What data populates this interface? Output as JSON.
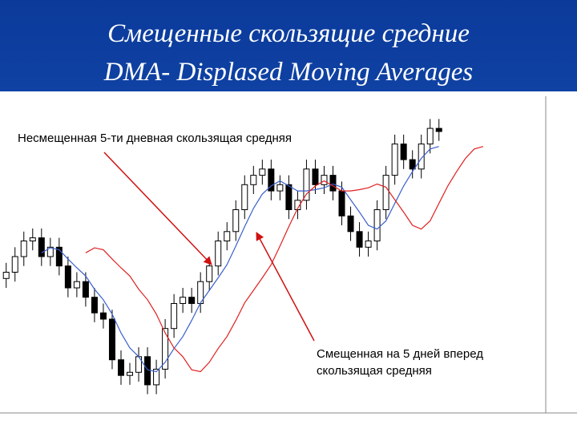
{
  "chart_data": {
    "type": "candlestick",
    "title": "Смещенные скользящие средние",
    "subtitle": "DMA- Displased Moving Averages",
    "annotations": [
      "Несмещенная 5-ти дневная скользящая средняя",
      "Смещенная на 5 дней вперед",
      "скользящая средняя"
    ],
    "open": [
      43,
      45,
      50,
      55,
      56,
      50,
      53,
      47,
      40,
      42,
      37,
      32,
      30,
      17,
      12,
      13,
      18,
      9,
      14,
      27,
      35,
      37,
      35,
      42,
      47,
      55,
      58,
      65,
      73,
      76,
      78,
      71,
      73,
      65,
      68,
      78,
      73,
      76,
      71,
      63,
      58,
      53,
      55,
      65,
      76,
      86,
      81,
      78,
      86,
      91
    ],
    "high": [
      48,
      53,
      58,
      59,
      59,
      56,
      56,
      50,
      45,
      45,
      40,
      35,
      33,
      20,
      16,
      21,
      21,
      17,
      30,
      38,
      40,
      40,
      45,
      50,
      58,
      61,
      68,
      76,
      79,
      81,
      81,
      76,
      76,
      71,
      81,
      81,
      79,
      79,
      74,
      66,
      61,
      58,
      68,
      79,
      89,
      89,
      84,
      89,
      94,
      94
    ],
    "low": [
      40,
      42,
      47,
      52,
      47,
      47,
      44,
      37,
      37,
      34,
      29,
      27,
      14,
      9,
      9,
      10,
      6,
      6,
      11,
      24,
      32,
      32,
      32,
      39,
      44,
      52,
      55,
      62,
      70,
      73,
      68,
      68,
      62,
      62,
      65,
      70,
      70,
      68,
      60,
      55,
      50,
      50,
      52,
      62,
      73,
      78,
      75,
      75,
      83,
      87
    ],
    "close": [
      45,
      50,
      55,
      56,
      50,
      53,
      47,
      40,
      42,
      37,
      32,
      30,
      17,
      12,
      13,
      18,
      9,
      14,
      27,
      35,
      37,
      35,
      42,
      47,
      55,
      58,
      65,
      73,
      76,
      78,
      71,
      73,
      65,
      68,
      78,
      73,
      76,
      71,
      63,
      58,
      53,
      55,
      65,
      76,
      86,
      81,
      78,
      86,
      91,
      90
    ],
    "up_color": "#ffffff",
    "down_color": "#000000",
    "series": [
      {
        "color": "#3a5fcd",
        "values": [
          null,
          null,
          null,
          null,
          51.2,
          52.8,
          52.2,
          49.2,
          46.4,
          43.8,
          39.6,
          36.2,
          31.6,
          25.6,
          20.8,
          18,
          13.8,
          13.2,
          16.2,
          20.6,
          24.4,
          29.6,
          35.2,
          39.2,
          43.2,
          47.4,
          53.4,
          59.6,
          65.4,
          70,
          72.6,
          74.2,
          72.6,
          71,
          71,
          71.4,
          72,
          73.2,
          72.2,
          68.2,
          64.2,
          60,
          58.8,
          61.4,
          67,
          72.6,
          77.2,
          81.4,
          84.4,
          85.2
        ]
      },
      {
        "color": "#e02020",
        "values": [
          null,
          null,
          null,
          null,
          null,
          null,
          null,
          null,
          null,
          51.2,
          52.8,
          52.2,
          49.2,
          46.4,
          43.8,
          39.6,
          36.2,
          31.6,
          25.6,
          20.8,
          18,
          13.8,
          13.2,
          16.2,
          20.6,
          24.4,
          29.6,
          35.2,
          39.2,
          43.2,
          47.4,
          53.4,
          59.6,
          65.4,
          70,
          72.6,
          74.2,
          72.6,
          71,
          71,
          71.4,
          72,
          73.2,
          72.2,
          68.2,
          64.2,
          60,
          58.8,
          61.4,
          67,
          72.6,
          77.2,
          81.4,
          84.4,
          85.2
        ]
      }
    ],
    "xlim": [
      -0.7,
      61
    ],
    "ylim": [
      0,
      100
    ]
  }
}
